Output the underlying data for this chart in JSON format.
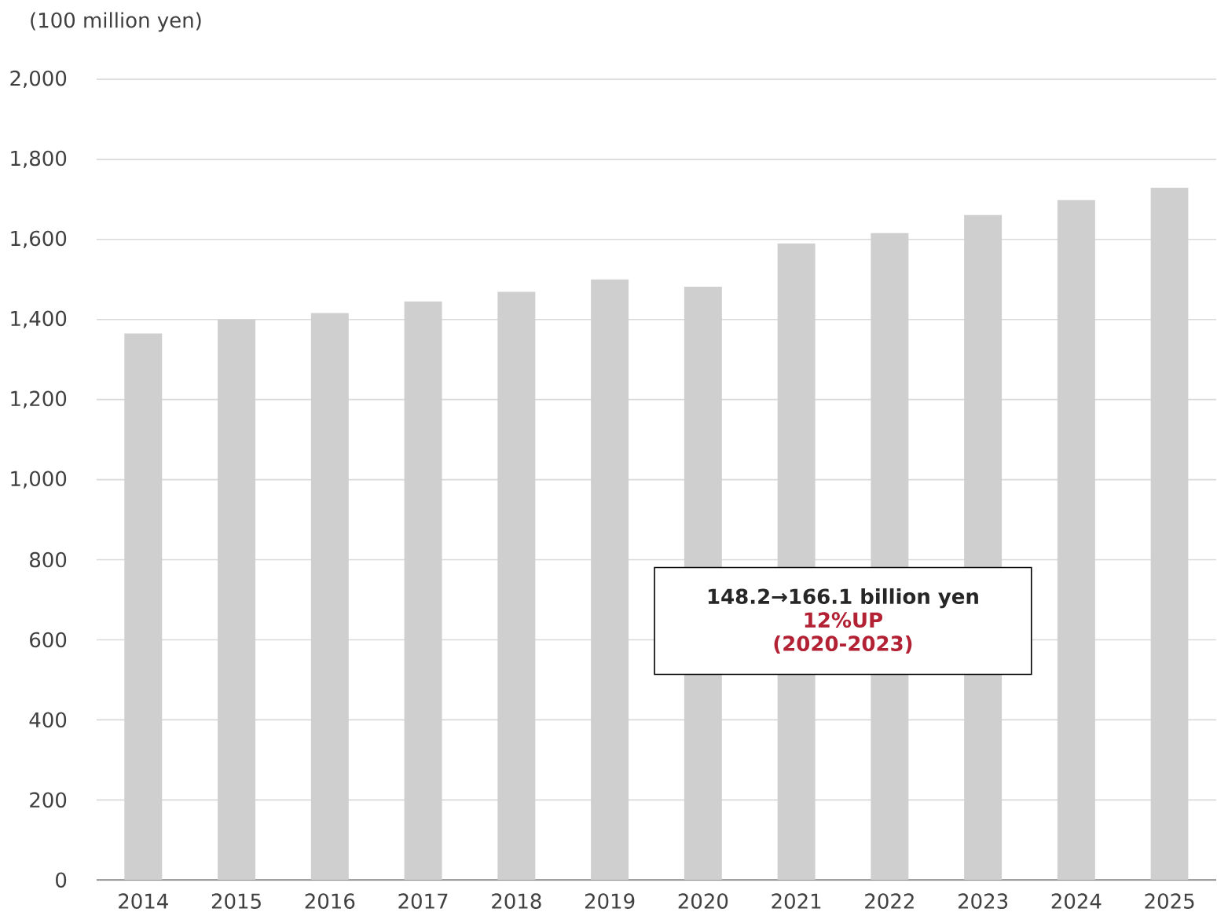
{
  "chart_data": {
    "type": "bar",
    "ylabel": "(100 million yen)",
    "categories": [
      "2014",
      "2015",
      "2016",
      "2017",
      "2018",
      "2019",
      "2020",
      "2021",
      "2022",
      "2023",
      "2024",
      "2025"
    ],
    "values": [
      1365,
      1400,
      1416,
      1445,
      1469,
      1500,
      1482,
      1590,
      1616,
      1661,
      1698,
      1729
    ],
    "color": "#d0cfd0",
    "ylim": [
      0,
      2000
    ],
    "yticks": [
      0,
      200,
      400,
      600,
      800,
      {
        "value": 1000,
        "label": "1,000"
      },
      {
        "value": 1200,
        "label": "1,200"
      },
      {
        "value": 1400,
        "label": "1,400"
      },
      {
        "value": 1600,
        "label": "1,600"
      },
      {
        "value": 1800,
        "label": "1,800"
      },
      {
        "value": 2000,
        "label": "2,000"
      }
    ],
    "grid": "y",
    "annotations": [
      "148.2→166.1 billion yen",
      "12%UP",
      "(2020-2023)"
    ]
  }
}
